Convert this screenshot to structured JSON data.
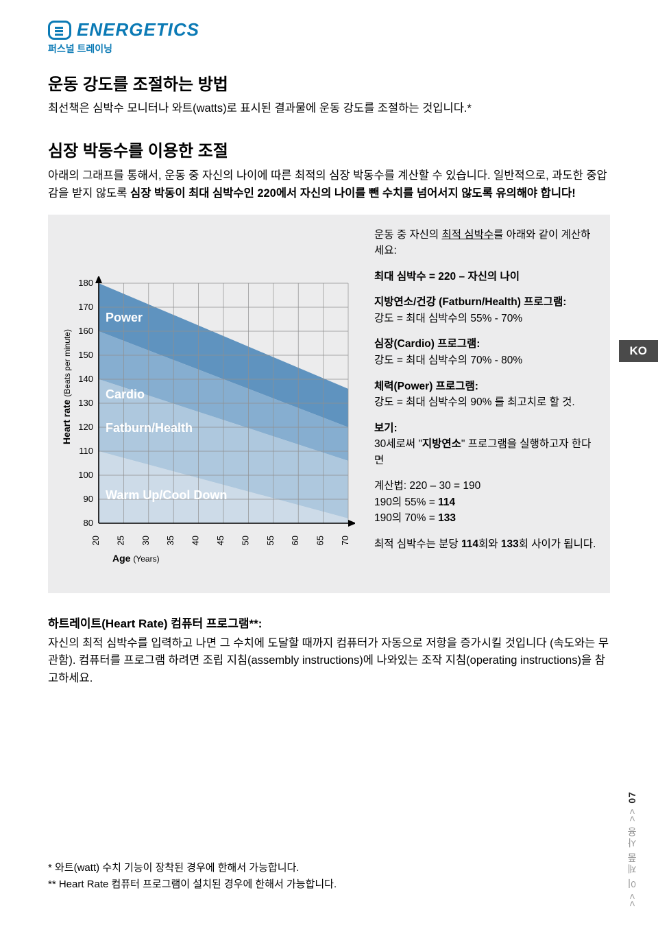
{
  "logo": {
    "word": "ENERGETICS",
    "sub": "퍼스널 트레이닝"
  },
  "lang_tab": "KO",
  "section1": {
    "title": "운동 강도를 조절하는 방법",
    "body": "최선책은 심박수 모니터나 와트(watts)로 표시된 결과물에 운동 강도를 조절하는 것입니다.*"
  },
  "section2": {
    "title": "심장 박동수를 이용한 조절",
    "body_pre": "아래의 그래프를 통해서, 운동 중 자신의 나이에 따른 최적의 심장 박동수를 계산할 수 있습니다. 일반적으로, 과도한 중압감을 받지 않도록 ",
    "body_bold": "심장 박동이 최대 심박수인 220에서 자신의 나이를 뺀 수치를 넘어서지 않도록 유의해야 합니다!"
  },
  "chart": {
    "type": "area",
    "y_label": "Heart rate",
    "y_label_sub": "(Beats per minute)",
    "x_label": "Age",
    "x_label_sub": "(Years)",
    "y_ticks": [
      80,
      90,
      100,
      110,
      120,
      130,
      140,
      150,
      160,
      170,
      180
    ],
    "x_ticks": [
      20,
      25,
      30,
      35,
      40,
      45,
      50,
      55,
      60,
      65,
      70
    ],
    "ylim": [
      80,
      180
    ],
    "xlim": [
      20,
      70
    ],
    "background": "#ececed",
    "grid_color": "#8f8f8f",
    "axis_color": "#000000",
    "zones": [
      {
        "name": "Power",
        "color": "#5f93bf",
        "top_age20": 180,
        "bot_age20": 160,
        "top_age70": 136,
        "bot_age70": 120
      },
      {
        "name": "Cardio",
        "color": "#86aed0",
        "top_age20": 160,
        "bot_age20": 140,
        "top_age70": 120,
        "bot_age70": 106
      },
      {
        "name": "Fatburn/Health",
        "color": "#aec8de",
        "top_age20": 140,
        "bot_age20": 110,
        "top_age70": 106,
        "bot_age70": 82
      },
      {
        "name": "Warm Up/Cool Down",
        "color": "#cddbe8",
        "top_age20": 110,
        "bot_age20": 80,
        "top_age70": 82,
        "bot_age70": 80
      }
    ],
    "zone_label_color": "#ffffff",
    "zone_label_fontsize": 18,
    "tick_fontsize": 13,
    "axis_label_fontsize": 14
  },
  "side": {
    "p1": {
      "pre": "운동 중 자신의 ",
      "underline": "최적 심박수",
      "post": "를 아래와 같이 계산하세요:"
    },
    "p2": "최대 심박수 = 220 – 자신의 나이",
    "p3_title": "지방연소/건강 (Fatburn/Health) 프로그램:",
    "p3_body": "강도 = 최대 심박수의 55% - 70%",
    "p4_title": "심장(Cardio) 프로그램:",
    "p4_body": "강도 = 최대 심박수의 70% - 80%",
    "p5_title": "체력(Power) 프로그램:",
    "p5_body": "강도 = 최대 심박수의 90% 를 최고치로 할 것.",
    "p6_title": "보기:",
    "p6_body_pre": "30세로써 \"",
    "p6_body_bold": "지방연소",
    "p6_body_post": "\" 프로그램을 실행하고자 한다면",
    "p7_l1": "계산법: 220 – 30 = 190",
    "p7_l2_pre": "190의 55% = ",
    "p7_l2_b": "114",
    "p7_l3_pre": "190의 70% = ",
    "p7_l3_b": "133",
    "p8_pre": "최적 심박수는 분당 ",
    "p8_b1": "114",
    "p8_mid": "회와 ",
    "p8_b2": "133",
    "p8_post": "회 사이가 됩니다."
  },
  "lower": {
    "title": "하트레이트(Heart Rate) 컴퓨터 프로그램**:",
    "body": "자신의 최적 심박수를 입력하고 나면 그 수치에 도달할 때까지 컴퓨터가 자동으로 저항을 증가시킬 것입니다 (속도와는 무관함). 컴퓨터를 프로그램 하려면 조립 지침(assembly instructions)에 나와있는 조작 지침(operating instructions)을 참고하세요."
  },
  "footnotes": {
    "f1": "*   와트(watt) 수치 기능이 장착된 경우에 한해서 가능합니다.",
    "f2": "** Heart Rate 컴퓨터 프로그램이 설치된 경우에 한해서 가능합니다."
  },
  "page_side": {
    "text": ">> 이 제품 사용 >>",
    "page": "07"
  }
}
